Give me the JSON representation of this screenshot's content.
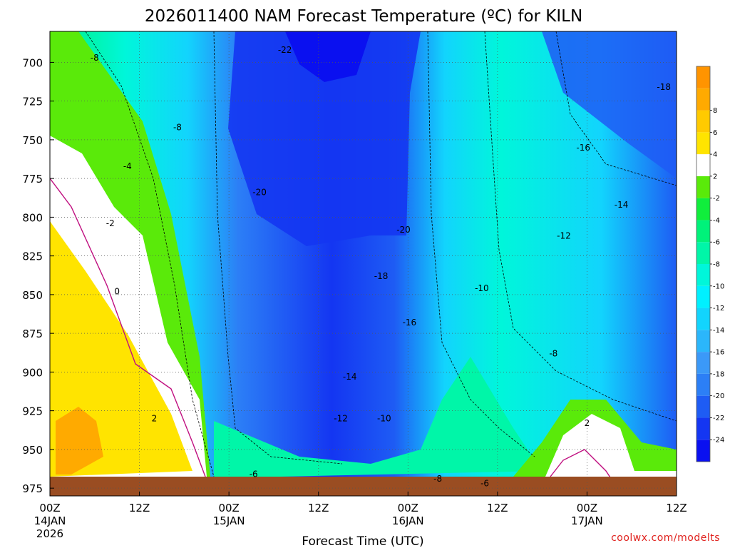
{
  "chart_data": {
    "type": "heatmap",
    "title": "2026011400 NAM Forecast Temperature (ºC) for KILN",
    "xlabel": "Forecast Time (UTC)",
    "ylabel": "",
    "credit": "coolwx.com/modelts",
    "x_hours_range": [
      0,
      84
    ],
    "y_range_hpa": [
      680,
      980
    ],
    "y_ticks": [
      700,
      725,
      750,
      775,
      800,
      825,
      850,
      875,
      900,
      925,
      950,
      975
    ],
    "y_tick_labels": [
      "700",
      "725",
      "750",
      "775",
      "800",
      "825",
      "850",
      "875",
      "900",
      "925",
      "950",
      "975"
    ],
    "x_ticks": [
      {
        "hour": 0,
        "label": "00Z",
        "date": "14JAN",
        "year": "2026"
      },
      {
        "hour": 12,
        "label": "12Z",
        "date": "",
        "year": ""
      },
      {
        "hour": 24,
        "label": "00Z",
        "date": "15JAN",
        "year": ""
      },
      {
        "hour": 36,
        "label": "12Z",
        "date": "",
        "year": ""
      },
      {
        "hour": 48,
        "label": "00Z",
        "date": "16JAN",
        "year": ""
      },
      {
        "hour": 60,
        "label": "12Z",
        "date": "",
        "year": ""
      },
      {
        "hour": 72,
        "label": "00Z",
        "date": "17JAN",
        "year": ""
      },
      {
        "hour": 84,
        "label": "12Z",
        "date": "",
        "year": ""
      }
    ],
    "grid": true,
    "colorbar": {
      "levels": [
        -26,
        -24,
        -22,
        -20,
        -18,
        -16,
        -14,
        -12,
        -10,
        -8,
        -6,
        -4,
        -2,
        2,
        4,
        6,
        8,
        10
      ],
      "colors": [
        "#0a10f0",
        "#1436f2",
        "#1e5cf4",
        "#2c7ff6",
        "#3b99f8",
        "#2bb6fb",
        "#12d4fd",
        "#00f0ff",
        "#00f6da",
        "#00f6a8",
        "#00f27a",
        "#10ee3c",
        "#5aea0a",
        "#ffffff",
        "#ffe400",
        "#ffca00",
        "#ffaa00",
        "#ff9400"
      ],
      "tick_labels": [
        "-24",
        "-22",
        "-20",
        "-18",
        "-16",
        "-14",
        "-12",
        "-10",
        "-8",
        "-6",
        "-4",
        "-2",
        "2",
        "4",
        "6",
        "8"
      ]
    },
    "ground_color": "#9a4d22",
    "zero_contour_color": "#c01080",
    "contour_labels": [
      {
        "text": "-22",
        "hour": 31.5,
        "p": 692
      },
      {
        "text": "-8",
        "hour": 6.0,
        "p": 697
      },
      {
        "text": "-18",
        "hour": 82.3,
        "p": 716
      },
      {
        "text": "-8",
        "hour": 17.1,
        "p": 742
      },
      {
        "text": "-16",
        "hour": 71.5,
        "p": 755
      },
      {
        "text": "-4",
        "hour": 10.4,
        "p": 767
      },
      {
        "text": "-20",
        "hour": 28.1,
        "p": 784
      },
      {
        "text": "-14",
        "hour": 76.6,
        "p": 792
      },
      {
        "text": "-2",
        "hour": 8.1,
        "p": 804
      },
      {
        "text": "-20",
        "hour": 47.4,
        "p": 808
      },
      {
        "text": "-12",
        "hour": 68.9,
        "p": 812
      },
      {
        "text": "-18",
        "hour": 44.4,
        "p": 838
      },
      {
        "text": "0",
        "hour": 9.0,
        "p": 848
      },
      {
        "text": "-10",
        "hour": 57.9,
        "p": 846
      },
      {
        "text": "-16",
        "hour": 48.2,
        "p": 868
      },
      {
        "text": "-8",
        "hour": 67.5,
        "p": 888
      },
      {
        "text": "-14",
        "hour": 40.2,
        "p": 903
      },
      {
        "text": "-12",
        "hour": 39.0,
        "p": 930
      },
      {
        "text": "-10",
        "hour": 44.8,
        "p": 930
      },
      {
        "text": "2",
        "hour": 14.0,
        "p": 930
      },
      {
        "text": "2",
        "hour": 72.0,
        "p": 933
      },
      {
        "text": "-6",
        "hour": 27.3,
        "p": 966
      },
      {
        "text": "-8",
        "hour": 52.0,
        "p": 969
      },
      {
        "text": "-6",
        "hour": 58.3,
        "p": 972
      }
    ]
  }
}
